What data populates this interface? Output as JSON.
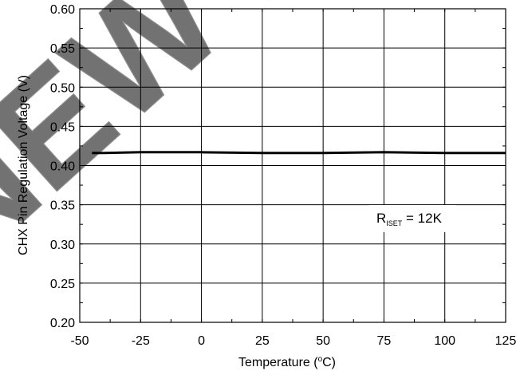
{
  "chart_data": {
    "type": "line",
    "title": "",
    "xlabel": "Temperature (°C)",
    "xlabel_parts": {
      "main": "Temperature (",
      "sup": "o",
      "tail": "C)"
    },
    "ylabel": "CHX Pin Regulation Voltage (V)",
    "xlim": [
      -50,
      125
    ],
    "ylim": [
      0.2,
      0.6
    ],
    "xticks": [
      -50,
      -25,
      0,
      25,
      50,
      75,
      100,
      125
    ],
    "xtick_labels": [
      "-50",
      "-25",
      "0",
      "25",
      "50",
      "75",
      "100",
      "125"
    ],
    "yticks": [
      0.2,
      0.25,
      0.3,
      0.35,
      0.4,
      0.45,
      0.5,
      0.55,
      0.6
    ],
    "ytick_labels": [
      "0.20",
      "0.25",
      "0.30",
      "0.35",
      "0.40",
      "0.45",
      "0.50",
      "0.55",
      "0.60"
    ],
    "grid": true,
    "series": [
      {
        "x": [
          -45,
          -40,
          -25,
          0,
          25,
          50,
          75,
          100,
          125
        ],
        "y": [
          0.416,
          0.416,
          0.417,
          0.417,
          0.416,
          0.416,
          0.417,
          0.416,
          0.416
        ]
      }
    ],
    "annotation": {
      "main": "R",
      "sub": "ISET",
      "tail": " = 12K"
    },
    "colors": {
      "line": "#000000",
      "grid": "#000000",
      "watermark": "#bfbfbf"
    }
  },
  "watermark": "NOT FOR NEW DESIGNS"
}
